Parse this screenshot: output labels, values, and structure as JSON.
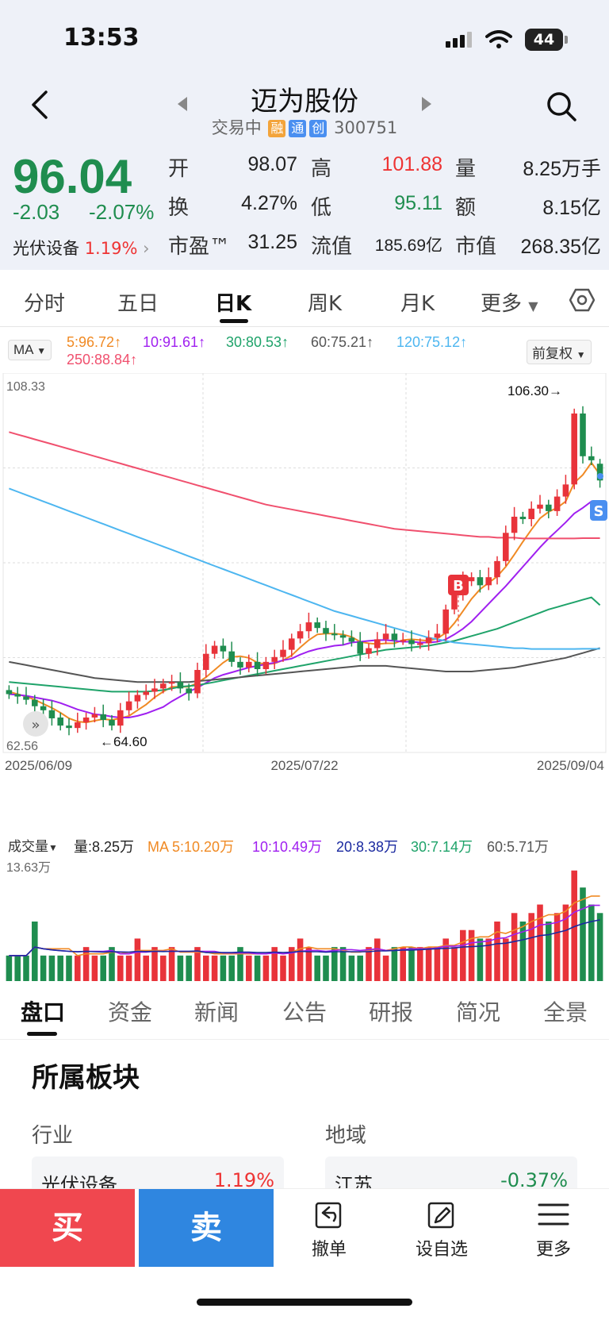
{
  "status": {
    "time": "13:53",
    "battery": "44"
  },
  "header": {
    "title": "迈为股份",
    "state": "交易中",
    "tags": [
      "融",
      "通",
      "创"
    ],
    "code": "300751"
  },
  "quote": {
    "price": "96.04",
    "change": "-2.03",
    "change_pct": "-2.07%",
    "sector_name": "光伏设备",
    "sector_pct": "1.19%",
    "fields": [
      {
        "label": "开",
        "value": "98.07"
      },
      {
        "label": "高",
        "value": "101.88"
      },
      {
        "label": "量",
        "value": "8.25万手"
      },
      {
        "label": "换",
        "value": "4.27%"
      },
      {
        "label": "低",
        "value": "95.11"
      },
      {
        "label": "额",
        "value": "8.15亿"
      },
      {
        "label": "市盈™",
        "value": "31.25"
      },
      {
        "label": "流值",
        "value": "185.69亿"
      },
      {
        "label": "市值",
        "value": "268.35亿"
      }
    ]
  },
  "tabs": [
    "分时",
    "五日",
    "日K",
    "周K",
    "月K",
    "更多"
  ],
  "ma": {
    "selector": "MA",
    "adjust": "前复权",
    "items": [
      {
        "text": "5:96.72",
        "color": "#f08a24"
      },
      {
        "text": "10:91.61",
        "color": "#a020f0"
      },
      {
        "text": "30:80.53",
        "color": "#1fa36a"
      },
      {
        "text": "60:75.21",
        "color": "#555555"
      },
      {
        "text": "120:75.12",
        "color": "#4db6f0"
      },
      {
        "text": "250:88.84",
        "color": "#f0506e"
      }
    ]
  },
  "chart_data": {
    "type": "candlestick",
    "ylim": [
      62.56,
      108.33
    ],
    "y_top_label": "108.33",
    "y_bottom_label": "62.56",
    "x_labels": [
      "2025/06/09",
      "2025/07/22",
      "2025/09/04"
    ],
    "high_marker": "106.30",
    "low_marker": "64.60",
    "buy_marker": "B",
    "sell_marker": "S",
    "closes": [
      69.5,
      69.2,
      68.8,
      68.0,
      67.5,
      66.5,
      65.6,
      65.3,
      66.0,
      66.6,
      67.0,
      66.3,
      65.6,
      67.5,
      68.6,
      69.4,
      69.8,
      70.2,
      70.8,
      71.0,
      70.2,
      69.6,
      72.5,
      74.5,
      75.5,
      74.8,
      73.5,
      72.8,
      73.5,
      72.6,
      73.5,
      74.1,
      75.0,
      76.4,
      77.3,
      78.4,
      77.7,
      77.0,
      76.8,
      76.5,
      76.0,
      74.5,
      75.2,
      76.3,
      77.0,
      76.2,
      76.2,
      75.7,
      75.8,
      76.5,
      77.0,
      80.0,
      82.0,
      83.5,
      84.0,
      83.0,
      84.0,
      86.0,
      89.5,
      91.5,
      91.2,
      92.5,
      93.0,
      92.2,
      94.0,
      95.5,
      104.3,
      99.0,
      98.5,
      96.0
    ],
    "opens": [
      70.0,
      69.5,
      69.2,
      68.8,
      68.0,
      67.5,
      66.6,
      65.6,
      65.3,
      66.0,
      66.6,
      67.0,
      66.3,
      65.6,
      67.5,
      68.6,
      69.4,
      69.8,
      70.2,
      70.8,
      71.0,
      70.2,
      69.6,
      72.5,
      74.5,
      75.5,
      74.8,
      73.5,
      72.8,
      73.5,
      72.6,
      73.5,
      74.1,
      75.0,
      76.4,
      77.3,
      78.4,
      77.7,
      77.0,
      76.8,
      76.5,
      76.0,
      74.5,
      75.2,
      76.3,
      77.0,
      76.2,
      76.2,
      75.7,
      75.8,
      76.5,
      77.0,
      80.0,
      82.0,
      83.5,
      84.0,
      83.0,
      84.0,
      86.0,
      89.5,
      91.5,
      91.2,
      92.5,
      93.0,
      92.2,
      94.0,
      95.5,
      104.3,
      99.0,
      98.07
    ],
    "ma_series": [
      {
        "name": "MA5",
        "color": "#f08a24",
        "values": [
          69.8,
          69.5,
          69.2,
          68.8,
          68.3,
          67.8,
          67.2,
          66.5,
          66.1,
          66.0,
          66.2,
          66.4,
          66.3,
          66.5,
          66.8,
          67.5,
          68.2,
          69.1,
          69.8,
          70.4,
          70.4,
          70.4,
          70.9,
          71.6,
          72.5,
          73.4,
          74.1,
          74.2,
          74.0,
          73.4,
          73.2,
          73.3,
          73.7,
          74.3,
          75.3,
          76.2,
          76.9,
          77.0,
          77.0,
          76.9,
          76.6,
          76.0,
          75.8,
          75.7,
          75.8,
          75.8,
          76.2,
          76.3,
          76.2,
          76.1,
          76.4,
          77.1,
          78.3,
          79.8,
          81.3,
          82.5,
          83.3,
          84.1,
          85.3,
          86.8,
          88.4,
          89.9,
          91.3,
          92.1,
          92.6,
          93.4,
          95.7,
          96.7,
          98.2,
          96.72
        ]
      },
      {
        "name": "MA10",
        "color": "#a020f0",
        "values": [
          69.5,
          69.4,
          69.3,
          69.1,
          68.9,
          68.7,
          68.4,
          68.0,
          67.6,
          67.3,
          67.0,
          66.9,
          66.7,
          66.6,
          66.6,
          66.8,
          67.1,
          67.5,
          67.9,
          68.6,
          69.2,
          69.8,
          70.3,
          70.9,
          71.5,
          71.9,
          72.2,
          72.5,
          72.8,
          73.0,
          73.2,
          73.4,
          73.7,
          73.9,
          74.4,
          74.8,
          75.1,
          75.3,
          75.5,
          75.6,
          75.9,
          76.0,
          76.1,
          76.2,
          76.2,
          76.1,
          76.0,
          76.0,
          75.9,
          75.9,
          76.0,
          76.3,
          76.9,
          77.6,
          78.5,
          79.6,
          80.7,
          81.8,
          82.9,
          84.1,
          85.3,
          86.5,
          87.7,
          88.8,
          89.8,
          90.8,
          91.9,
          92.6,
          93.4,
          91.61
        ]
      },
      {
        "name": "MA30",
        "color": "#1fa36a",
        "values": [
          71.0,
          70.9,
          70.8,
          70.7,
          70.6,
          70.5,
          70.4,
          70.3,
          70.2,
          70.1,
          70.0,
          69.9,
          69.8,
          69.8,
          69.8,
          69.8,
          69.8,
          69.9,
          70.0,
          70.2,
          70.4,
          70.5,
          70.6,
          70.8,
          71.0,
          71.2,
          71.4,
          71.6,
          71.8,
          72.0,
          72.2,
          72.4,
          72.6,
          72.8,
          73.0,
          73.2,
          73.4,
          73.6,
          73.8,
          74.0,
          74.2,
          74.4,
          74.6,
          74.8,
          75.0,
          75.1,
          75.2,
          75.3,
          75.4,
          75.5,
          75.7,
          75.9,
          76.1,
          76.4,
          76.7,
          77.0,
          77.3,
          77.6,
          78.0,
          78.4,
          78.8,
          79.2,
          79.6,
          80.0,
          80.3,
          80.6,
          80.9,
          81.2,
          81.5,
          80.53
        ]
      },
      {
        "name": "MA60",
        "color": "#555555",
        "values": [
          73.5,
          73.3,
          73.1,
          72.9,
          72.7,
          72.5,
          72.3,
          72.1,
          71.9,
          71.7,
          71.5,
          71.4,
          71.3,
          71.2,
          71.1,
          71.0,
          71.0,
          71.0,
          71.0,
          71.0,
          71.0,
          71.0,
          71.1,
          71.2,
          71.3,
          71.4,
          71.5,
          71.6,
          71.7,
          71.8,
          71.9,
          72.0,
          72.1,
          72.2,
          72.3,
          72.4,
          72.5,
          72.6,
          72.7,
          72.8,
          72.9,
          73.0,
          73.0,
          73.0,
          73.0,
          72.9,
          72.8,
          72.7,
          72.6,
          72.5,
          72.4,
          72.3,
          72.3,
          72.3,
          72.3,
          72.4,
          72.5,
          72.6,
          72.7,
          72.8,
          73.0,
          73.2,
          73.4,
          73.6,
          73.8,
          74.0,
          74.3,
          74.6,
          74.9,
          75.21
        ]
      },
      {
        "name": "MA120",
        "color": "#4db6f0",
        "values": [
          95.0,
          94.6,
          94.2,
          93.8,
          93.4,
          93.0,
          92.6,
          92.2,
          91.8,
          91.4,
          91.0,
          90.6,
          90.2,
          89.8,
          89.4,
          89.0,
          88.6,
          88.2,
          87.8,
          87.4,
          87.0,
          86.6,
          86.2,
          85.8,
          85.4,
          85.0,
          84.6,
          84.2,
          83.8,
          83.4,
          83.0,
          82.6,
          82.2,
          81.8,
          81.4,
          81.0,
          80.6,
          80.2,
          79.8,
          79.5,
          79.2,
          78.9,
          78.6,
          78.3,
          78.0,
          77.7,
          77.4,
          77.1,
          76.8,
          76.5,
          76.3,
          76.1,
          75.9,
          75.8,
          75.7,
          75.6,
          75.5,
          75.4,
          75.3,
          75.2,
          75.2,
          75.1,
          75.1,
          75.1,
          75.1,
          75.1,
          75.1,
          75.12,
          75.12,
          75.12
        ]
      },
      {
        "name": "MA250",
        "color": "#f0506e",
        "values": [
          102.0,
          101.7,
          101.4,
          101.1,
          100.8,
          100.5,
          100.2,
          99.9,
          99.6,
          99.3,
          99.0,
          98.7,
          98.4,
          98.1,
          97.8,
          97.5,
          97.2,
          96.9,
          96.6,
          96.3,
          96.0,
          95.7,
          95.4,
          95.1,
          94.8,
          94.5,
          94.2,
          93.9,
          93.6,
          93.3,
          93.0,
          92.8,
          92.6,
          92.4,
          92.2,
          92.0,
          91.8,
          91.6,
          91.4,
          91.2,
          91.0,
          90.8,
          90.6,
          90.4,
          90.2,
          90.0,
          89.9,
          89.8,
          89.7,
          89.6,
          89.5,
          89.4,
          89.3,
          89.2,
          89.1,
          89.0,
          89.0,
          88.9,
          88.9,
          88.9,
          88.8,
          88.8,
          88.8,
          88.8,
          88.8,
          88.8,
          88.8,
          88.84,
          88.84,
          88.84
        ]
      }
    ]
  },
  "volume": {
    "selector": "成交量",
    "items": [
      {
        "text": "量:8.25万",
        "color": "#222222"
      },
      {
        "text": "MA 5:10.20万",
        "color": "#f08a24"
      },
      {
        "text": "10:10.49万",
        "color": "#a020f0"
      },
      {
        "text": "20:8.38万",
        "color": "#1b2aa0"
      },
      {
        "text": "30:7.14万",
        "color": "#1fa36a"
      },
      {
        "text": "60:5.71万",
        "color": "#555555"
      }
    ],
    "max_label": "13.63万",
    "bars": [
      3,
      3,
      3,
      7,
      3,
      3,
      3,
      3,
      3,
      4,
      3,
      3,
      4,
      3,
      3,
      5,
      3,
      4,
      3,
      4,
      3,
      3,
      4,
      3,
      3,
      3,
      3,
      4,
      3,
      3,
      3,
      4,
      3,
      4,
      5,
      4,
      3,
      3,
      4,
      4,
      3,
      3,
      4,
      5,
      3,
      4,
      4,
      4,
      4,
      4,
      4,
      5,
      4,
      6,
      6,
      5,
      5,
      7,
      5,
      8,
      7,
      8,
      9,
      7,
      8,
      9,
      13,
      11,
      9,
      8
    ]
  },
  "bottom_tabs": [
    "盘口",
    "资金",
    "新闻",
    "公告",
    "研报",
    "简况",
    "全景"
  ],
  "sectors": {
    "title": "所属板块",
    "industry_label": "行业",
    "region_label": "地域",
    "industry_name": "光伏设备",
    "industry_pct": "1.19%",
    "region_name": "江苏",
    "region_pct": "-0.37%"
  },
  "actions": {
    "buy": "买",
    "sell": "卖",
    "cancel": "撤单",
    "watch": "设自选",
    "more": "更多"
  }
}
